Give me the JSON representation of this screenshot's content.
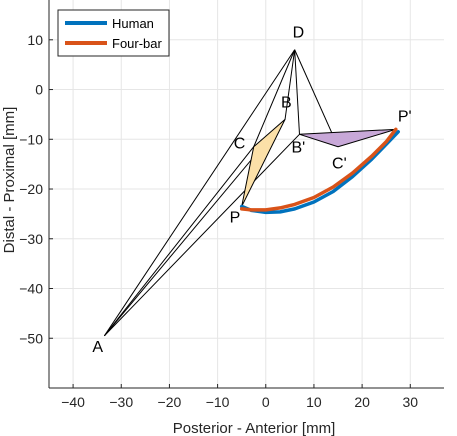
{
  "chart_data": {
    "type": "line",
    "xlabel": "Posterior - Anterior [mm]",
    "ylabel": "Distal - Proximal [mm]",
    "xlim": [
      -45,
      37
    ],
    "ylim": [
      -60,
      18
    ],
    "xticks": [
      -40,
      -30,
      -20,
      -10,
      0,
      10,
      20,
      30
    ],
    "yticks": [
      10,
      0,
      -10,
      -20,
      -30,
      -40,
      -50
    ],
    "grid": true,
    "legend_position": "top-left",
    "series": [
      {
        "name": "Human",
        "color": "#0072BD",
        "x": [
          -5,
          -3,
          0,
          3,
          6,
          10,
          14,
          18,
          22,
          25,
          27.5
        ],
        "y": [
          -23.5,
          -24.3,
          -24.7,
          -24.6,
          -24.0,
          -22.6,
          -20.5,
          -17.5,
          -14.0,
          -11.0,
          -8.5
        ]
      },
      {
        "name": "Four-bar",
        "color": "#D95319",
        "x": [
          -5,
          -3,
          0,
          3,
          6,
          10,
          14,
          18,
          22,
          25,
          27
        ],
        "y": [
          -24.0,
          -24.2,
          -24.2,
          -23.8,
          -23.1,
          -21.7,
          -19.6,
          -16.8,
          -13.4,
          -10.5,
          -8.0
        ]
      }
    ],
    "points": [
      {
        "label": "A",
        "x": -33.5,
        "y": -49.5
      },
      {
        "label": "D",
        "x": 6,
        "y": 8
      },
      {
        "label": "B",
        "x": 4,
        "y": -6
      },
      {
        "label": "C",
        "x": -2.5,
        "y": -11.5
      },
      {
        "label": "P",
        "x": -5,
        "y": -23.5
      },
      {
        "label": "B'",
        "x": 7,
        "y": -9
      },
      {
        "label": "C'",
        "x": 15,
        "y": -11.5
      },
      {
        "label": "P'",
        "x": 27,
        "y": -8
      }
    ],
    "links": [
      [
        "A",
        "D"
      ],
      [
        "A",
        "B"
      ],
      [
        "A",
        "C"
      ],
      [
        "D",
        "C"
      ],
      [
        "D",
        "B"
      ],
      [
        "A",
        "B'"
      ],
      [
        "D",
        "C'"
      ],
      [
        "D",
        "B'"
      ]
    ],
    "coupler_initial": {
      "vertices": [
        "B",
        "C",
        "P"
      ],
      "fill": "#FBE0A8"
    },
    "coupler_final": {
      "vertices": [
        "B'",
        "C'",
        "P'"
      ],
      "fill": "#C8A8D8"
    }
  }
}
